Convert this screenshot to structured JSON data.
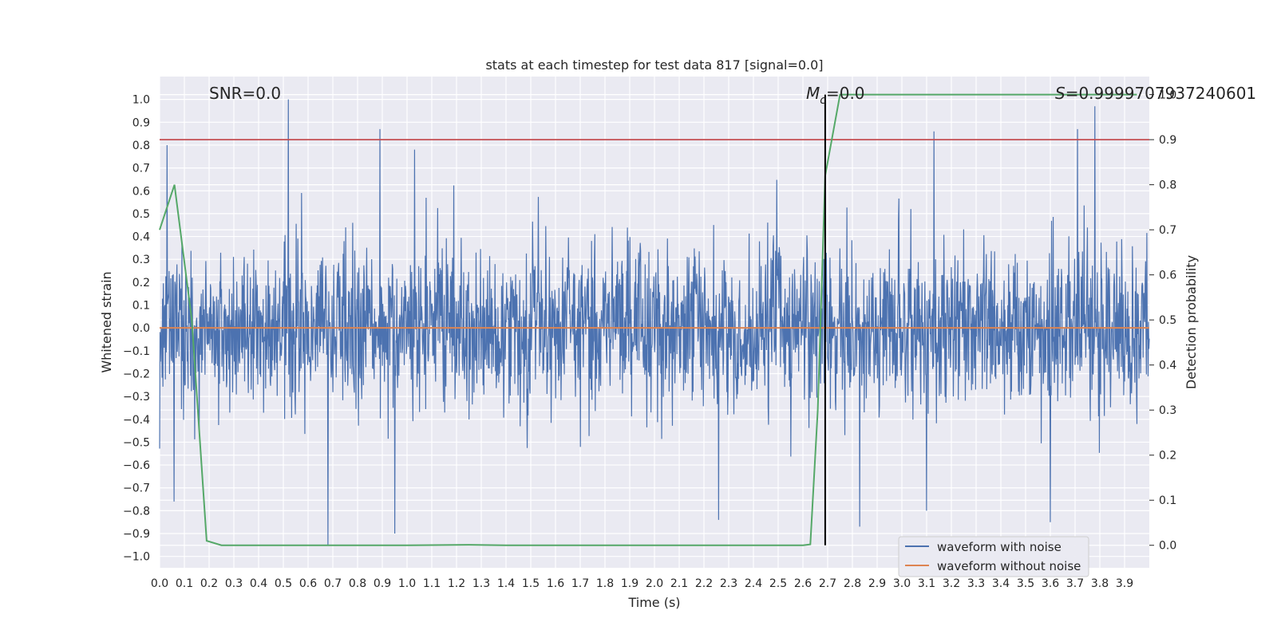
{
  "chart_data": {
    "type": "line",
    "title": "stats at each timestep for test data 817 [signal=0.0]",
    "xlabel": "Time (s)",
    "ylabel": "Whitened strain",
    "y2label": "Detection probability",
    "xlim": [
      0.0,
      4.0
    ],
    "ylim": [
      -1.05,
      1.1
    ],
    "y2lim": [
      -0.05,
      1.04
    ],
    "xticks": [
      "0.0",
      "0.1",
      "0.2",
      "0.3",
      "0.4",
      "0.5",
      "0.6",
      "0.7",
      "0.8",
      "0.9",
      "1.0",
      "1.1",
      "1.2",
      "1.3",
      "1.4",
      "1.5",
      "1.6",
      "1.7",
      "1.8",
      "1.9",
      "2.0",
      "2.1",
      "2.2",
      "2.3",
      "2.4",
      "2.5",
      "2.6",
      "2.7",
      "2.8",
      "2.9",
      "3.0",
      "3.1",
      "3.2",
      "3.3",
      "3.4",
      "3.5",
      "3.6",
      "3.7",
      "3.8",
      "3.9"
    ],
    "yticks": [
      "1.0",
      "0.9",
      "0.8",
      "0.7",
      "0.6",
      "0.5",
      "0.4",
      "0.3",
      "0.2",
      "0.1",
      "0.0",
      "−0.1",
      "−0.2",
      "−0.3",
      "−0.4",
      "−0.5",
      "−0.6",
      "−0.7",
      "−0.8",
      "−0.9",
      "−1.0"
    ],
    "y2ticks": [
      "1.0",
      "0.9",
      "0.8",
      "0.7",
      "0.6",
      "0.5",
      "0.4",
      "0.3",
      "0.2",
      "0.1",
      "0.0"
    ],
    "grid": true,
    "legend_position": "lower-right",
    "annotations": {
      "snr": "SNR=0.0",
      "mc_symbol": "M",
      "mc_subscript": "c",
      "mc_value": "=0.0",
      "s_symbol": "S",
      "s_value": "=0.9999707937240601"
    },
    "threshold": 0.9,
    "marker_time": 2.69,
    "series": [
      {
        "name": "waveform with noise",
        "color": "#4c72b0",
        "axis": "left",
        "kind": "noise",
        "x_range": [
          0.0,
          4.0
        ],
        "y_range": [
          -0.95,
          1.0
        ],
        "typical_amplitude": 0.17,
        "peaks": [
          [
            0.52,
            1.0
          ],
          [
            0.89,
            0.87
          ],
          [
            3.78,
            0.97
          ],
          [
            3.71,
            0.87
          ],
          [
            3.13,
            0.86
          ],
          [
            0.03,
            0.8
          ],
          [
            1.03,
            0.78
          ],
          [
            0.68,
            -0.95
          ],
          [
            0.95,
            -0.9
          ],
          [
            2.26,
            -0.84
          ],
          [
            2.83,
            -0.87
          ],
          [
            3.6,
            -0.85
          ],
          [
            3.1,
            -0.8
          ]
        ]
      },
      {
        "name": "waveform without noise",
        "color": "#dd8452",
        "axis": "left",
        "x": [
          0.0,
          4.0
        ],
        "y": [
          0.0,
          0.0
        ]
      },
      {
        "name": "Detection probability",
        "color": "#55a868",
        "axis": "right",
        "x": [
          0.0,
          0.06,
          0.13,
          0.19,
          0.25,
          1.0,
          1.25,
          1.4,
          2.0,
          2.6,
          2.63,
          2.66,
          2.69,
          2.75,
          3.0,
          3.5,
          3.95
        ],
        "y": [
          0.7,
          0.8,
          0.5,
          0.01,
          0.0,
          0.0,
          0.001,
          0.0,
          0.0,
          0.0,
          0.002,
          0.3,
          0.82,
          1.0,
          1.0,
          1.0,
          1.0
        ]
      }
    ],
    "colors": {
      "threshold": "#c44e52",
      "marker": "#000000",
      "plot_background": "#eaeaf2",
      "grid": "#ffffff"
    }
  }
}
